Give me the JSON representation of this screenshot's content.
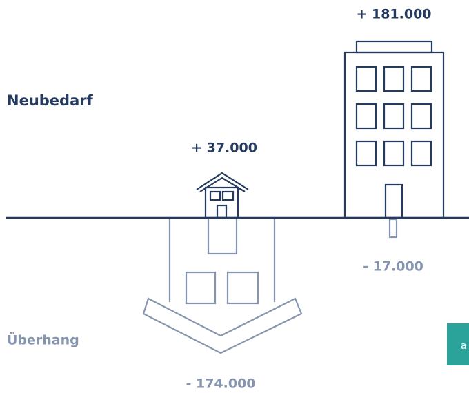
{
  "labels": {
    "top": "Neubedarf",
    "bottom": "Überhang"
  },
  "items": [
    {
      "value": "+ 181.000"
    },
    {
      "value": "+ 37.000"
    },
    {
      "value": "- 17.000"
    },
    {
      "value": "- 174.000"
    }
  ],
  "button": "a"
}
